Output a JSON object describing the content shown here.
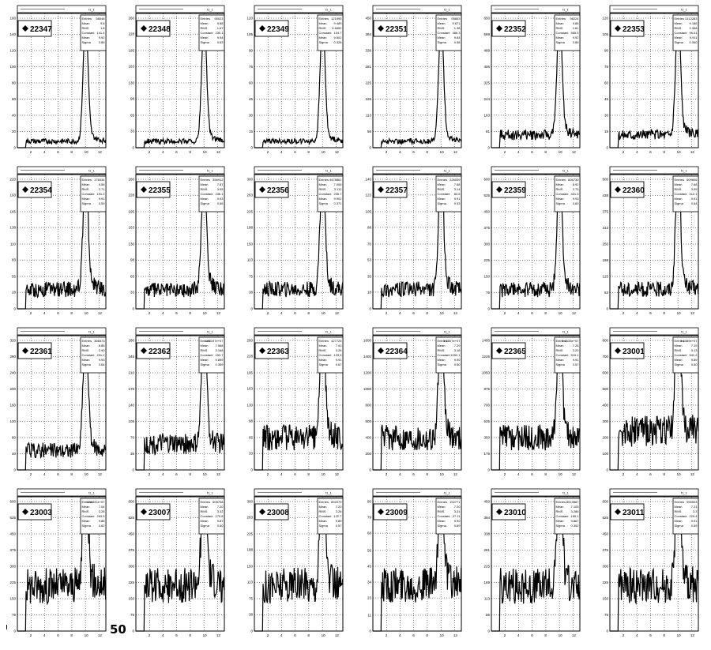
{
  "page": {
    "footer_label": "50"
  },
  "chart_data": [
    {
      "type": "line",
      "run": "22347",
      "histname": "f1_1",
      "ymax": 160,
      "peak_x": 10,
      "noise": 5,
      "stats": [
        [
          "Entries",
          "58048"
        ],
        [
          "Mean",
          "9.8"
        ],
        [
          "RMS",
          "1.8"
        ],
        [
          "Constant",
          "141.4"
        ],
        [
          "Mean",
          "9.92"
        ],
        [
          "Sigma",
          "0.66"
        ]
      ]
    },
    {
      "type": "line",
      "run": "22348",
      "histname": "f1_1",
      "ymax": 260,
      "peak_x": 10,
      "noise": 5,
      "stats": [
        [
          "Entries",
          "95023"
        ],
        [
          "Mean",
          "9.88"
        ],
        [
          "RMS",
          "1.67"
        ],
        [
          "Constant",
          "230.1"
        ],
        [
          "Mean",
          "9.94"
        ],
        [
          "Sigma",
          "0.63"
        ]
      ]
    },
    {
      "type": "line",
      "run": "22349",
      "histname": "f1_1",
      "ymax": 120,
      "peak_x": 10,
      "noise": 5,
      "stats": [
        [
          "Entries",
          "121995"
        ],
        [
          "Mean",
          "9.489"
        ],
        [
          "RMS",
          "0.6652"
        ],
        [
          "Constant",
          "104.7"
        ],
        [
          "Mean",
          "9.502"
        ],
        [
          "Sigma",
          "0.328"
        ]
      ]
    },
    {
      "type": "line",
      "run": "22351",
      "histname": "f1_1",
      "ymax": 450,
      "peak_x": 10,
      "noise": 5,
      "stats": [
        [
          "Entries",
          "95853"
        ],
        [
          "Mean",
          "9.671"
        ],
        [
          "RMS",
          "1.38"
        ],
        [
          "Constant",
          "386.3"
        ],
        [
          "Mean",
          "9.84"
        ],
        [
          "Sigma",
          "0.58"
        ]
      ]
    },
    {
      "type": "line",
      "run": "22352",
      "histname": "f1_1",
      "ymax": 650,
      "peak_x": 10,
      "noise": 10,
      "stats": [
        [
          "Entries",
          "98224"
        ],
        [
          "Mean",
          "9.88"
        ],
        [
          "RMS",
          "1.81"
        ],
        [
          "Constant",
          "565.5"
        ],
        [
          "Mean",
          "9.92"
        ],
        [
          "Sigma",
          "0.66"
        ]
      ]
    },
    {
      "type": "line",
      "run": "22353",
      "histname": "f1_1",
      "ymax": 120,
      "peak_x": 10,
      "noise": 10,
      "stats": [
        [
          "Entries",
          "1312283"
        ],
        [
          "Mean",
          "9.186"
        ],
        [
          "RMS",
          "2.398"
        ],
        [
          "Constant",
          "96.01"
        ],
        [
          "Mean",
          "9.911"
        ],
        [
          "Sigma",
          "0.340"
        ]
      ]
    },
    {
      "type": "line",
      "run": "22354",
      "histname": "f1_1",
      "ymax": 220,
      "peak_x": 10,
      "noise": 15,
      "stats": [
        [
          "Entries",
          "176034"
        ],
        [
          "Mean",
          "9.56"
        ],
        [
          "RMS",
          "2.71"
        ],
        [
          "Constant",
          "191.2"
        ],
        [
          "Mean",
          "9.91"
        ],
        [
          "Sigma",
          "0.59"
        ]
      ]
    },
    {
      "type": "line",
      "run": "22355",
      "histname": "f1_1",
      "ymax": 260,
      "peak_x": 10,
      "noise": 15,
      "stats": [
        [
          "Entries",
          "356912"
        ],
        [
          "Mean",
          "7.87"
        ],
        [
          "RMS",
          "3.05"
        ],
        [
          "Constant",
          "236.1"
        ],
        [
          "Mean",
          "9.93"
        ],
        [
          "Sigma",
          "0.66"
        ]
      ]
    },
    {
      "type": "line",
      "run": "22356",
      "histname": "f1_1",
      "ymax": 300,
      "peak_x": 10,
      "noise": 15,
      "stats": [
        [
          "Entries",
          "4478861"
        ],
        [
          "Mean",
          "7.006"
        ],
        [
          "RMS",
          "3.112"
        ],
        [
          "Constant",
          "205.7"
        ],
        [
          "Mean",
          "9.902"
        ],
        [
          "Sigma",
          "0.371"
        ]
      ]
    },
    {
      "type": "line",
      "run": "22357",
      "histname": "f1_1",
      "ymax": 140,
      "peak_x": 10,
      "noise": 15,
      "stats": [
        [
          "Entries",
          "226039"
        ],
        [
          "Mean",
          "7.68"
        ],
        [
          "RMS",
          "3.14"
        ],
        [
          "Constant",
          "84.6"
        ],
        [
          "Mean",
          "9.91"
        ],
        [
          "Sigma",
          "0.53"
        ]
      ]
    },
    {
      "type": "line",
      "run": "22359",
      "histname": "f1_1",
      "ymax": 600,
      "peak_x": 10,
      "noise": 15,
      "stats": [
        [
          "Entries",
          "606730"
        ],
        [
          "Mean",
          "8.92"
        ],
        [
          "RMS",
          "2.75"
        ],
        [
          "Constant",
          "401.3"
        ],
        [
          "Mean",
          "9.93"
        ],
        [
          "Sigma",
          "0.60"
        ]
      ]
    },
    {
      "type": "line",
      "run": "22360",
      "histname": "f1_1",
      "ymax": 500,
      "peak_x": 10,
      "noise": 15,
      "stats": [
        [
          "Entries",
          "609606"
        ],
        [
          "Mean",
          "7.68"
        ],
        [
          "RMS",
          "3.09"
        ],
        [
          "Constant",
          "412.1"
        ],
        [
          "Mean",
          "9.91"
        ],
        [
          "Sigma",
          "0.64"
        ]
      ]
    },
    {
      "type": "line",
      "run": "22361",
      "histname": "f1_1",
      "ymax": 320,
      "peak_x": 10,
      "noise": 15,
      "stats": [
        [
          "Entries",
          "366573"
        ],
        [
          "Mean",
          "8.86"
        ],
        [
          "RMS",
          "2.90"
        ],
        [
          "Constant",
          "231.2"
        ],
        [
          "Mean",
          "9.93"
        ],
        [
          "Sigma",
          "0.64"
        ]
      ]
    },
    {
      "type": "line",
      "run": "22362",
      "histname": "f1_1",
      "ymax": 280,
      "peak_x": 10,
      "noise": 20,
      "stats": [
        [
          "Entries",
          "1.25197e+07"
        ],
        [
          "Mean",
          "7.568"
        ],
        [
          "RMS",
          "3.168"
        ],
        [
          "Constant",
          "153.7"
        ],
        [
          "Mean",
          "9.899"
        ],
        [
          "Sigma",
          "0.359"
        ]
      ]
    },
    {
      "type": "line",
      "run": "22363",
      "histname": "f1_1",
      "ymax": 260,
      "peak_x": 10,
      "noise": 25,
      "stats": [
        [
          "Entries",
          "427725"
        ],
        [
          "Mean",
          "7.40"
        ],
        [
          "RMS",
          "3.26"
        ],
        [
          "Constant",
          "129.5"
        ],
        [
          "Mean",
          "9.91"
        ],
        [
          "Sigma",
          "0.67"
        ]
      ]
    },
    {
      "type": "line",
      "run": "22364",
      "histname": "f1_1",
      "ymax": 1600,
      "peak_x": 10,
      "noise": 25,
      "stats": [
        [
          "Entries",
          "1.6807e+07"
        ],
        [
          "Mean",
          "7.29"
        ],
        [
          "RMS",
          "3.16"
        ],
        [
          "Constant",
          "1052.1"
        ],
        [
          "Mean",
          "9.90"
        ],
        [
          "Sigma",
          "0.50"
        ]
      ]
    },
    {
      "type": "line",
      "run": "22365",
      "histname": "f1_1",
      "ymax": 1400,
      "peak_x": 10,
      "noise": 25,
      "stats": [
        [
          "Entries",
          "1.6633e+07"
        ],
        [
          "Mean",
          "7.26"
        ],
        [
          "RMS",
          "3.20"
        ],
        [
          "Constant",
          "910.1"
        ],
        [
          "Mean",
          "9.91"
        ],
        [
          "Sigma",
          "0.57"
        ]
      ]
    },
    {
      "type": "line",
      "run": "23001",
      "histname": "f1_1",
      "ymax": 800,
      "peak_x": 10,
      "noise": 30,
      "stats": [
        [
          "Entries",
          "1.6389e+07"
        ],
        [
          "Mean",
          "7.19"
        ],
        [
          "RMS",
          "3.13"
        ],
        [
          "Constant",
          "541.2"
        ],
        [
          "Mean",
          "9.89"
        ],
        [
          "Sigma",
          "0.50"
        ]
      ]
    },
    {
      "type": "line",
      "run": "23003",
      "histname": "f1_1",
      "ymax": 600,
      "peak_x": 10,
      "noise": 35,
      "stats": [
        [
          "Entries",
          "1.08831e+07"
        ],
        [
          "Mean",
          "7.04"
        ],
        [
          "RMS",
          "3.28"
        ],
        [
          "Constant",
          "263.5"
        ],
        [
          "Mean",
          "9.88"
        ],
        [
          "Sigma",
          "0.62"
        ]
      ]
    },
    {
      "type": "line",
      "run": "23007",
      "histname": "f1_1",
      "ymax": 600,
      "peak_x": 10,
      "noise": 35,
      "stats": [
        [
          "Entries",
          "608738"
        ],
        [
          "Mean",
          "7.20"
        ],
        [
          "RMS",
          "3.32"
        ],
        [
          "Constant",
          "170.8"
        ],
        [
          "Mean",
          "9.87"
        ],
        [
          "Sigma",
          "0.60"
        ]
      ]
    },
    {
      "type": "line",
      "run": "23008",
      "histname": "f1_1",
      "ymax": 300,
      "peak_x": 10,
      "noise": 35,
      "stats": [
        [
          "Entries",
          "892079"
        ],
        [
          "Mean",
          "7.20"
        ],
        [
          "RMS",
          "3.26"
        ],
        [
          "Constant",
          "122.7"
        ],
        [
          "Mean",
          "9.89"
        ],
        [
          "Sigma",
          "0.57"
        ]
      ]
    },
    {
      "type": "line",
      "run": "23009",
      "histname": "f1_1",
      "ymax": 90,
      "peak_x": 10,
      "noise": 35,
      "stats": [
        [
          "Entries",
          "152771"
        ],
        [
          "Mean",
          "7.20"
        ],
        [
          "RMS",
          "3.31"
        ],
        [
          "Constant",
          "27.11"
        ],
        [
          "Mean",
          "9.90"
        ],
        [
          "Sigma",
          "0.69"
        ]
      ]
    },
    {
      "type": "line",
      "run": "23010",
      "histname": "f1_1",
      "ymax": 450,
      "peak_x": 10,
      "noise": 35,
      "stats": [
        [
          "Entries",
          "8519887"
        ],
        [
          "Mean",
          "7.105"
        ],
        [
          "RMS",
          "3.286"
        ],
        [
          "Constant",
          "160.1"
        ],
        [
          "Mean",
          "9.867"
        ],
        [
          "Sigma",
          "0.352"
        ]
      ]
    },
    {
      "type": "line",
      "run": "23011",
      "histname": "f1_1",
      "ymax": 600,
      "peak_x": 10,
      "noise": 35,
      "stats": [
        [
          "Entries",
          "955003"
        ],
        [
          "Mean",
          "7.21"
        ],
        [
          "RMS",
          "3.3"
        ],
        [
          "Constant",
          "229.4"
        ],
        [
          "Mean",
          "9.91"
        ],
        [
          "Sigma",
          "0.59"
        ]
      ]
    }
  ]
}
